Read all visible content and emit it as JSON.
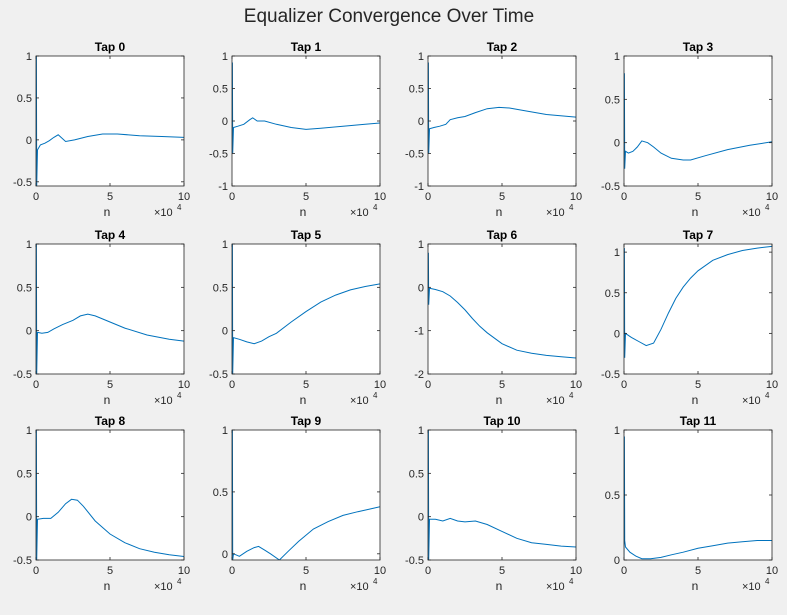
{
  "figure": {
    "suptitle": "Equalizer Convergence Over Time",
    "line_color": "#0072bd"
  },
  "chart_data": [
    {
      "type": "line",
      "title": "Tap 0",
      "xlabel": "n",
      "x_exponent_label": "×10",
      "x_exponent": "4",
      "xlim": [
        0,
        10
      ],
      "ylim": [
        -0.55,
        1
      ],
      "xticks": [
        0,
        5,
        10
      ],
      "yticks": [
        -0.5,
        0,
        0.5,
        1
      ],
      "series": [
        {
          "x": [
            0,
            0.03,
            0.05,
            0.1,
            0.3,
            0.6,
            0.9,
            1.2,
            1.5,
            2,
            2.6,
            3.5,
            4.5,
            5.5,
            7,
            8.5,
            10
          ],
          "y": [
            1,
            1,
            -0.55,
            -0.12,
            -0.06,
            -0.04,
            -0.01,
            0.03,
            0.06,
            -0.02,
            0,
            0.04,
            0.07,
            0.07,
            0.05,
            0.04,
            0.03
          ]
        }
      ]
    },
    {
      "type": "line",
      "title": "Tap 1",
      "xlabel": "n",
      "x_exponent_label": "×10",
      "x_exponent": "4",
      "xlim": [
        0,
        10
      ],
      "ylim": [
        -1,
        1
      ],
      "xticks": [
        0,
        5,
        10
      ],
      "yticks": [
        -1,
        -0.5,
        0,
        0.5,
        1
      ],
      "series": [
        {
          "x": [
            0,
            0.03,
            0.05,
            0.1,
            0.4,
            0.8,
            1.2,
            1.4,
            1.7,
            2.2,
            3,
            4,
            5,
            6,
            7.5,
            9,
            10
          ],
          "y": [
            0,
            0.9,
            -0.5,
            -0.1,
            -0.08,
            -0.05,
            0.02,
            0.05,
            0,
            0,
            -0.05,
            -0.1,
            -0.13,
            -0.11,
            -0.08,
            -0.05,
            -0.03
          ]
        }
      ]
    },
    {
      "type": "line",
      "title": "Tap 2",
      "xlabel": "n",
      "x_exponent_label": "×10",
      "x_exponent": "4",
      "xlim": [
        0,
        10
      ],
      "ylim": [
        -1,
        1
      ],
      "xticks": [
        0,
        5,
        10
      ],
      "yticks": [
        -1,
        -0.5,
        0,
        0.5,
        1
      ],
      "series": [
        {
          "x": [
            0,
            0.03,
            0.05,
            0.1,
            0.4,
            0.8,
            1.2,
            1.5,
            2,
            2.5,
            3.2,
            4,
            4.8,
            5.5,
            6.5,
            8,
            10
          ],
          "y": [
            0,
            0.9,
            -0.5,
            -0.12,
            -0.1,
            -0.08,
            -0.05,
            0.02,
            0.05,
            0.07,
            0.13,
            0.19,
            0.21,
            0.2,
            0.16,
            0.1,
            0.06
          ]
        }
      ]
    },
    {
      "type": "line",
      "title": "Tap 3",
      "xlabel": "n",
      "x_exponent_label": "×10",
      "x_exponent": "4",
      "xlim": [
        0,
        10
      ],
      "ylim": [
        -0.5,
        1
      ],
      "xticks": [
        0,
        5,
        10
      ],
      "yticks": [
        -0.5,
        0,
        0.5,
        1
      ],
      "series": [
        {
          "x": [
            0,
            0.03,
            0.05,
            0.1,
            0.3,
            0.6,
            0.9,
            1.2,
            1.6,
            2,
            2.5,
            3.2,
            4,
            4.5,
            5.5,
            7,
            8.5,
            10
          ],
          "y": [
            0,
            0.8,
            -0.3,
            -0.1,
            -0.12,
            -0.1,
            -0.05,
            0.02,
            0.0,
            -0.05,
            -0.12,
            -0.18,
            -0.2,
            -0.2,
            -0.15,
            -0.08,
            -0.03,
            0.01
          ]
        }
      ]
    },
    {
      "type": "line",
      "title": "Tap 4",
      "xlabel": "n",
      "x_exponent_label": "×10",
      "x_exponent": "4",
      "xlim": [
        0,
        10
      ],
      "ylim": [
        -0.5,
        1
      ],
      "xticks": [
        0,
        5,
        10
      ],
      "yticks": [
        -0.5,
        0,
        0.5,
        1
      ],
      "series": [
        {
          "x": [
            0,
            0.03,
            0.05,
            0.1,
            0.4,
            0.8,
            1.2,
            1.8,
            2.5,
            3,
            3.5,
            4,
            5,
            6,
            7.5,
            9,
            10
          ],
          "y": [
            1,
            1,
            -0.5,
            -0.02,
            -0.03,
            -0.02,
            0.02,
            0.07,
            0.12,
            0.17,
            0.19,
            0.17,
            0.1,
            0.03,
            -0.05,
            -0.1,
            -0.12
          ]
        }
      ]
    },
    {
      "type": "line",
      "title": "Tap 5",
      "xlabel": "n",
      "x_exponent_label": "×10",
      "x_exponent": "4",
      "xlim": [
        0,
        10
      ],
      "ylim": [
        -0.5,
        1
      ],
      "xticks": [
        0,
        5,
        10
      ],
      "yticks": [
        -0.5,
        0,
        0.5,
        1
      ],
      "series": [
        {
          "x": [
            0,
            0.03,
            0.05,
            0.1,
            0.5,
            1,
            1.5,
            2,
            2.5,
            3,
            4,
            5,
            6,
            7,
            8,
            9,
            10
          ],
          "y": [
            1,
            1,
            -0.5,
            -0.08,
            -0.1,
            -0.13,
            -0.15,
            -0.12,
            -0.07,
            -0.03,
            0.1,
            0.22,
            0.33,
            0.41,
            0.47,
            0.51,
            0.54
          ]
        }
      ]
    },
    {
      "type": "line",
      "title": "Tap 6",
      "xlabel": "n",
      "x_exponent_label": "×10",
      "x_exponent": "4",
      "xlim": [
        0,
        10
      ],
      "ylim": [
        -2,
        1
      ],
      "xticks": [
        0,
        5,
        10
      ],
      "yticks": [
        -2,
        -1,
        0,
        1
      ],
      "series": [
        {
          "x": [
            0,
            0.03,
            0.05,
            0.1,
            0.5,
            1,
            1.5,
            2,
            2.5,
            3,
            3.5,
            4,
            5,
            6,
            7,
            8,
            9,
            10
          ],
          "y": [
            0,
            0.8,
            -0.4,
            -0.02,
            -0.05,
            -0.1,
            -0.2,
            -0.35,
            -0.52,
            -0.72,
            -0.9,
            -1.05,
            -1.3,
            -1.45,
            -1.52,
            -1.57,
            -1.6,
            -1.63
          ]
        }
      ]
    },
    {
      "type": "line",
      "title": "Tap 7",
      "xlabel": "n",
      "x_exponent_label": "×10",
      "x_exponent": "4",
      "xlim": [
        0,
        10
      ],
      "ylim": [
        -0.5,
        1.1
      ],
      "xticks": [
        0,
        5,
        10
      ],
      "yticks": [
        -0.5,
        0,
        0.5,
        1
      ],
      "series": [
        {
          "x": [
            0,
            0.03,
            0.05,
            0.1,
            0.5,
            1,
            1.5,
            2,
            2.5,
            3,
            3.5,
            4,
            4.5,
            5,
            6,
            7,
            8,
            9,
            10
          ],
          "y": [
            1,
            1.05,
            -0.3,
            0.0,
            -0.05,
            -0.1,
            -0.15,
            -0.12,
            0.05,
            0.25,
            0.43,
            0.57,
            0.68,
            0.77,
            0.9,
            0.97,
            1.02,
            1.05,
            1.07
          ]
        }
      ]
    },
    {
      "type": "line",
      "title": "Tap 8",
      "xlabel": "n",
      "x_exponent_label": "×10",
      "x_exponent": "4",
      "xlim": [
        0,
        10
      ],
      "ylim": [
        -0.5,
        1
      ],
      "xticks": [
        0,
        5,
        10
      ],
      "yticks": [
        -0.5,
        0,
        0.5,
        1
      ],
      "series": [
        {
          "x": [
            0,
            0.03,
            0.05,
            0.1,
            0.5,
            1,
            1.5,
            2,
            2.4,
            2.8,
            3.2,
            4,
            5,
            6,
            7,
            8,
            9,
            10
          ],
          "y": [
            1,
            1,
            -0.5,
            -0.03,
            -0.02,
            -0.02,
            0.05,
            0.15,
            0.2,
            0.19,
            0.12,
            -0.05,
            -0.2,
            -0.3,
            -0.37,
            -0.41,
            -0.44,
            -0.46
          ]
        }
      ]
    },
    {
      "type": "line",
      "title": "Tap 9",
      "xlabel": "n",
      "x_exponent_label": "×10",
      "x_exponent": "4",
      "xlim": [
        0,
        10
      ],
      "ylim": [
        -0.05,
        1
      ],
      "xticks": [
        0,
        5,
        10
      ],
      "yticks": [
        0,
        0.5,
        1
      ],
      "series": [
        {
          "x": [
            0,
            0.03,
            0.05,
            0.1,
            0.5,
            1,
            1.5,
            1.8,
            2.2,
            2.6,
            3.2,
            3.8,
            4.5,
            5.5,
            6.5,
            7.5,
            8.5,
            10
          ],
          "y": [
            1,
            1,
            -0.05,
            0.0,
            -0.02,
            0.02,
            0.05,
            0.06,
            0.03,
            0.0,
            -0.05,
            0.02,
            0.1,
            0.2,
            0.26,
            0.31,
            0.34,
            0.38
          ]
        }
      ]
    },
    {
      "type": "line",
      "title": "Tap 10",
      "xlabel": "n",
      "x_exponent_label": "×10",
      "x_exponent": "4",
      "xlim": [
        0,
        10
      ],
      "ylim": [
        -0.5,
        1
      ],
      "xticks": [
        0,
        5,
        10
      ],
      "yticks": [
        -0.5,
        0,
        0.5,
        1
      ],
      "series": [
        {
          "x": [
            0,
            0.03,
            0.05,
            0.1,
            0.5,
            1,
            1.5,
            2,
            2.5,
            3.2,
            4,
            5,
            6,
            7,
            8,
            9,
            10
          ],
          "y": [
            1,
            1,
            -0.5,
            -0.03,
            -0.03,
            -0.05,
            -0.02,
            -0.05,
            -0.06,
            -0.05,
            -0.09,
            -0.17,
            -0.25,
            -0.3,
            -0.32,
            -0.34,
            -0.35
          ]
        }
      ]
    },
    {
      "type": "line",
      "title": "Tap 11",
      "xlabel": "n",
      "x_exponent_label": "×10",
      "x_exponent": "4",
      "xlim": [
        0,
        10
      ],
      "ylim": [
        0,
        1
      ],
      "xticks": [
        0,
        5,
        10
      ],
      "yticks": [
        0,
        0.5,
        1
      ],
      "series": [
        {
          "x": [
            0,
            0.03,
            0.05,
            0.1,
            0.4,
            0.8,
            1.2,
            1.8,
            2.5,
            3.2,
            4,
            5,
            6,
            7,
            8,
            9,
            10
          ],
          "y": [
            0,
            0.95,
            0.15,
            0.1,
            0.06,
            0.03,
            0.01,
            0.01,
            0.02,
            0.04,
            0.06,
            0.09,
            0.11,
            0.13,
            0.14,
            0.15,
            0.15
          ]
        }
      ]
    }
  ]
}
